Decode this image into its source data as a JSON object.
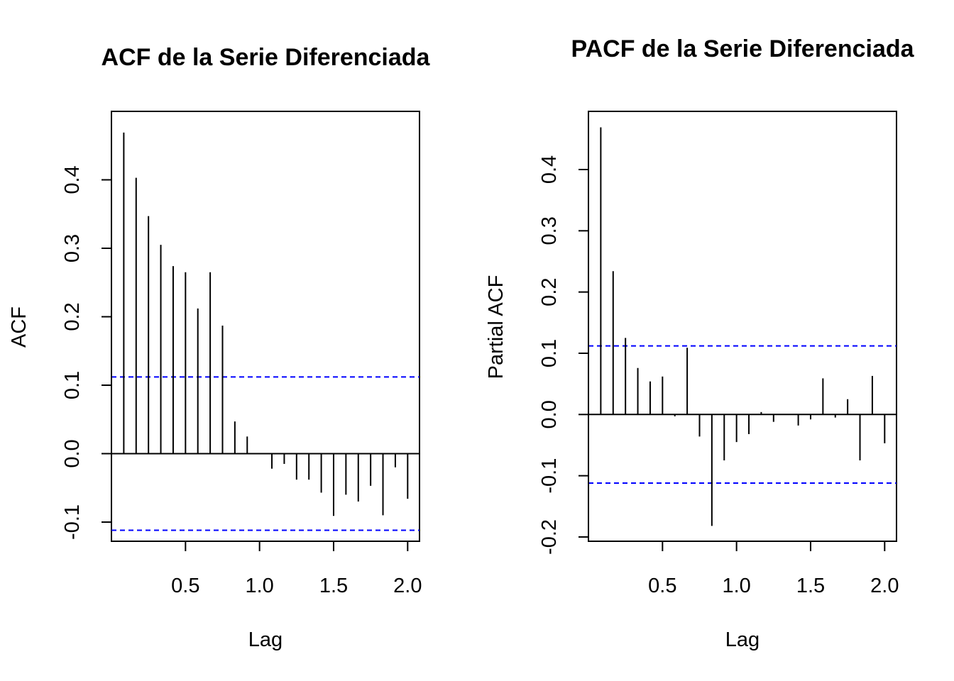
{
  "chart_data": [
    {
      "type": "bar",
      "subtype": "acf-stem",
      "title": "ACF de la Serie Diferenciada",
      "xlabel": "Lag",
      "ylabel": "ACF",
      "xlim": [
        0.0,
        2.08
      ],
      "ylim": [
        -0.128,
        0.5
      ],
      "x_ticks": [
        0.5,
        1.0,
        1.5,
        2.0
      ],
      "x_tick_labels": [
        "0.5",
        "1.0",
        "1.5",
        "2.0"
      ],
      "y_ticks": [
        -0.1,
        0.0,
        0.1,
        0.2,
        0.3,
        0.4
      ],
      "y_tick_labels": [
        "-0.1",
        "0.0",
        "0.1",
        "0.2",
        "0.3",
        "0.4"
      ],
      "confidence_bounds": [
        0.112,
        -0.112
      ],
      "bound_color": "#0000ff",
      "bar_color": "#000000",
      "grid": false,
      "x": [
        0.0833,
        0.1667,
        0.25,
        0.3333,
        0.4167,
        0.5,
        0.5833,
        0.6667,
        0.75,
        0.8333,
        0.9167,
        1.0,
        1.0833,
        1.1667,
        1.25,
        1.3333,
        1.4167,
        1.5,
        1.5833,
        1.6667,
        1.75,
        1.8333,
        1.9167,
        2.0
      ],
      "values": [
        0.469,
        0.403,
        0.347,
        0.305,
        0.274,
        0.265,
        0.212,
        0.265,
        0.187,
        0.047,
        0.025,
        0.0,
        -0.022,
        -0.015,
        -0.038,
        -0.038,
        -0.057,
        -0.091,
        -0.06,
        -0.07,
        -0.047,
        -0.09,
        -0.02,
        -0.066
      ]
    },
    {
      "type": "bar",
      "subtype": "pacf-stem",
      "title": "PACF de la Serie Diferenciada",
      "xlabel": "Lag",
      "ylabel": "Partial ACF",
      "xlim": [
        0.0,
        2.08
      ],
      "ylim": [
        -0.207,
        0.495
      ],
      "x_ticks": [
        0.5,
        1.0,
        1.5,
        2.0
      ],
      "x_tick_labels": [
        "0.5",
        "1.0",
        "1.5",
        "2.0"
      ],
      "y_ticks": [
        -0.2,
        -0.1,
        0.0,
        0.1,
        0.2,
        0.3,
        0.4
      ],
      "y_tick_labels": [
        "-0.2",
        "-0.1",
        "0.0",
        "0.1",
        "0.2",
        "0.3",
        "0.4"
      ],
      "confidence_bounds": [
        0.112,
        -0.112
      ],
      "bound_color": "#0000ff",
      "bar_color": "#000000",
      "grid": false,
      "x": [
        0.0833,
        0.1667,
        0.25,
        0.3333,
        0.4167,
        0.5,
        0.5833,
        0.6667,
        0.75,
        0.8333,
        0.9167,
        1.0,
        1.0833,
        1.1667,
        1.25,
        1.3333,
        1.4167,
        1.5,
        1.5833,
        1.6667,
        1.75,
        1.8333,
        1.9167,
        2.0
      ],
      "values": [
        0.469,
        0.234,
        0.125,
        0.076,
        0.054,
        0.062,
        -0.003,
        0.109,
        -0.036,
        -0.182,
        -0.075,
        -0.045,
        -0.032,
        0.004,
        -0.012,
        0.0,
        -0.018,
        -0.008,
        0.059,
        -0.005,
        0.025,
        -0.075,
        0.063,
        -0.047
      ]
    }
  ]
}
